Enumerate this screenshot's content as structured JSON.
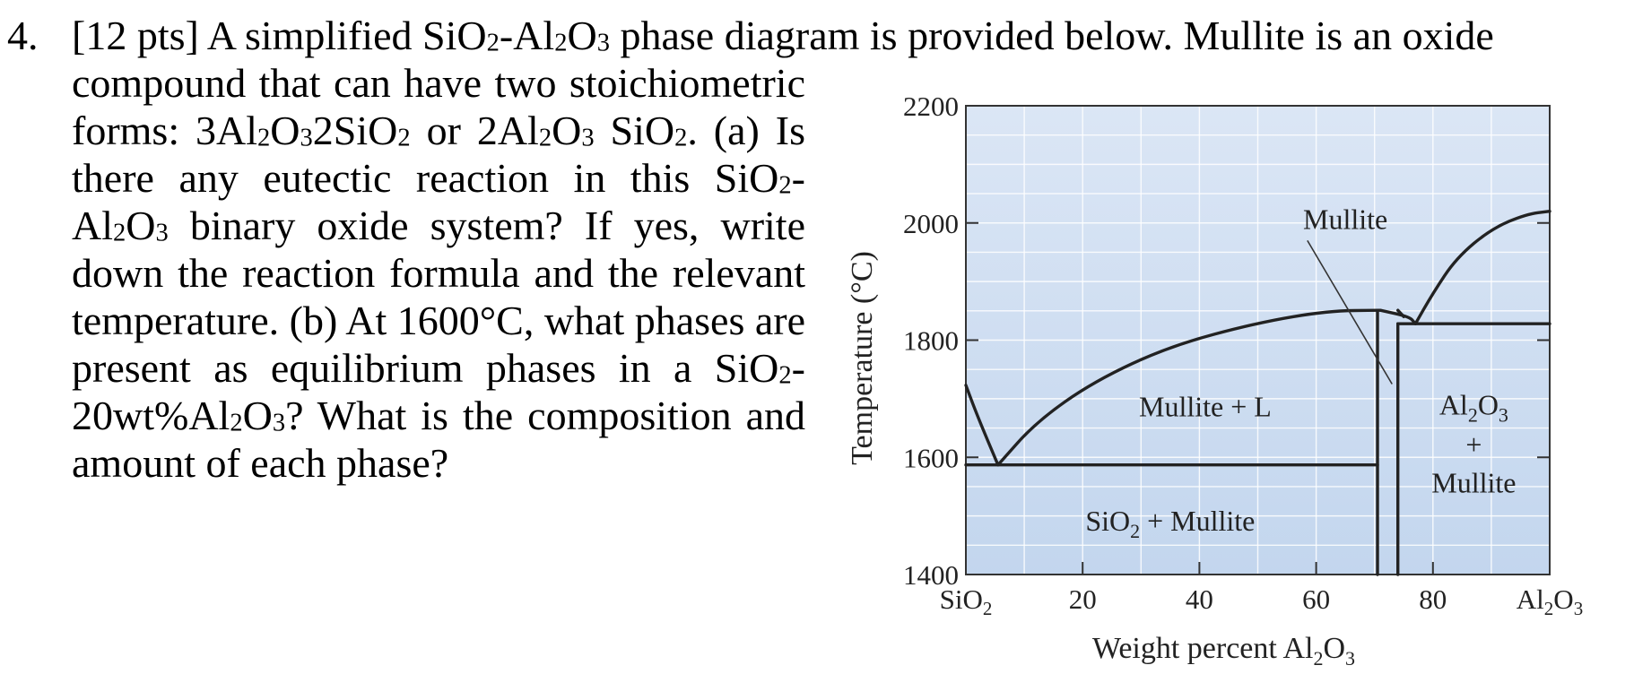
{
  "question": {
    "number": "4.",
    "line1_parts": [
      "[12 pts] A simplified SiO",
      "2",
      "-Al",
      "2",
      "O",
      "3",
      " phase diagram is provided below. Mullite is an oxide"
    ],
    "lines": [
      [
        "compound that can have two stoichiometric"
      ],
      [
        "forms: 3Al",
        "2",
        "O",
        "3",
        "2SiO",
        "2",
        " or 2Al",
        "2",
        "O",
        "3",
        " SiO",
        "2",
        ". (a) Is"
      ],
      [
        "there any eutectic reaction in this SiO",
        "2",
        "-"
      ],
      [
        "Al",
        "2",
        "O",
        "3",
        " binary oxide system? If yes, write"
      ],
      [
        "down the reaction formula and the relevant"
      ],
      [
        "temperature. (b) At 1600°C, what phases are"
      ],
      [
        "present as equilibrium phases in a SiO",
        "2",
        "-"
      ],
      [
        "20wt%Al",
        "2",
        "O",
        "3",
        "? What is the composition and"
      ],
      [
        "amount of each phase?"
      ]
    ]
  },
  "chart_data": {
    "type": "phase-diagram",
    "xlabel": "Weight percent Al2O3",
    "ylabel": "Temperature (°C)",
    "xlim": [
      0,
      100
    ],
    "ylim": [
      1400,
      2200
    ],
    "x_ticks": [
      {
        "value": 0,
        "label": "SiO2"
      },
      {
        "value": 20,
        "label": "20"
      },
      {
        "value": 40,
        "label": "40"
      },
      {
        "value": 60,
        "label": "60"
      },
      {
        "value": 80,
        "label": "80"
      },
      {
        "value": 100,
        "label": "Al2O3"
      }
    ],
    "y_ticks": [
      1400,
      1600,
      1800,
      2000,
      2200
    ],
    "grid": true,
    "background_color": "#c3d6ee",
    "line_color": "#222222",
    "lines": [
      {
        "name": "silica-liquidus",
        "points": [
          [
            0,
            1723
          ],
          [
            2,
            1670
          ],
          [
            5.5,
            1587
          ]
        ]
      },
      {
        "name": "mullite-liquidus",
        "points": [
          [
            5.5,
            1587
          ],
          [
            12,
            1660
          ],
          [
            22,
            1730
          ],
          [
            35,
            1790
          ],
          [
            50,
            1830
          ],
          [
            62,
            1850
          ],
          [
            71,
            1851
          ]
        ]
      },
      {
        "name": "mullite-liquidus-right",
        "points": [
          [
            71,
            1851
          ],
          [
            76,
            1840
          ],
          [
            77,
            1828
          ]
        ]
      },
      {
        "name": "alumina-liquidus",
        "points": [
          [
            77,
            1828
          ],
          [
            80,
            1880
          ],
          [
            84,
            1940
          ],
          [
            90,
            1990
          ],
          [
            96,
            2015
          ],
          [
            100,
            2020
          ]
        ]
      },
      {
        "name": "eutectic-isotherm-low",
        "points": [
          [
            0,
            1587
          ],
          [
            70.5,
            1587
          ]
        ]
      },
      {
        "name": "eutectic-isotherm-high",
        "points": [
          [
            74,
            1828
          ],
          [
            100,
            1828
          ]
        ]
      },
      {
        "name": "mullite-left-boundary",
        "points": [
          [
            70.5,
            1400
          ],
          [
            70.5,
            1851
          ]
        ]
      },
      {
        "name": "mullite-right-boundary-lower",
        "points": [
          [
            74,
            1400
          ],
          [
            74,
            1828
          ]
        ]
      },
      {
        "name": "mullite-right-boundary-upper",
        "points": [
          [
            74,
            1851
          ],
          [
            75,
            1840
          ]
        ]
      }
    ],
    "regions": [
      {
        "label": "Mullite",
        "x": 65,
        "y": 1990,
        "pointer": [
          [
            58.5,
            1970
          ],
          [
            73,
            1725
          ]
        ]
      },
      {
        "label": "Mullite + L",
        "x": 41,
        "y": 1670
      },
      {
        "label": "Al2O3",
        "x": 87,
        "y": 1673
      },
      {
        "label": "+",
        "x": 87,
        "y": 1605
      },
      {
        "label": "Mullite",
        "x": 87,
        "y": 1540
      },
      {
        "label": "SiO2 + Mullite",
        "x": 35,
        "y": 1475
      }
    ]
  }
}
